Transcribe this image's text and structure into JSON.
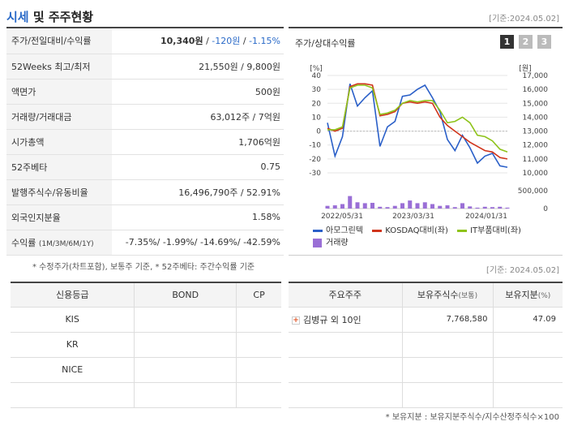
{
  "header": {
    "title_highlight": "시세",
    "title_rest": " 및 주주현황",
    "base_date": "[기준:2024.05.02]"
  },
  "info_rows": [
    {
      "label": "주가/전일대비/수익률",
      "value_main": "10,340원",
      "value_sep1": " / ",
      "value_change": "-120원",
      "value_sep2": " / ",
      "value_rate": "-1.15%"
    },
    {
      "label": "52Weeks 최고/최저",
      "value": "21,550원 / 9,800원"
    },
    {
      "label": "액면가",
      "value": "500원"
    },
    {
      "label": "거래량/거래대금",
      "value": "63,012주 / 7억원"
    },
    {
      "label": "시가총액",
      "value": "1,706억원"
    },
    {
      "label": "52주베타",
      "value": "0.75"
    },
    {
      "label": "발행주식수/유동비율",
      "value": "16,496,790주 / 52.91%"
    },
    {
      "label": "외국인지분율",
      "value": "1.58%"
    },
    {
      "label": "수익률",
      "label_small": "(1M/3M/6M/1Y)",
      "value": "-7.35%/ -1.99%/ -14.69%/ -42.59%"
    }
  ],
  "note_left": "* 수정주가(차트포함), 보통주 기준, * 52주베타: 주간수익률 기준",
  "base_date_2": "[기준: 2024.05.02]",
  "chart_panel": {
    "title": "주가/상대수익률",
    "tabs": [
      "1",
      "2",
      "3"
    ],
    "left_unit": "[%]",
    "right_unit": "[원]"
  },
  "chart_data": {
    "type": "line",
    "x_ticks": [
      "2022/05/31",
      "2023/03/31",
      "2024/01/31"
    ],
    "y_left_ticks": [
      40,
      30,
      20,
      10,
      0,
      -10,
      -20,
      -30
    ],
    "y_right_ticks": [
      "17,000",
      "16,000",
      "15,000",
      "14,000",
      "13,000",
      "12,000",
      "11,000",
      "10,000"
    ],
    "volume_ticks": [
      "500,000",
      "0"
    ],
    "series": [
      {
        "name": "아모그린텍",
        "color": "#2a5fc8",
        "values": [
          6,
          -18,
          -4,
          34,
          18,
          24,
          29,
          -11,
          3,
          7,
          25,
          26,
          30,
          33,
          24,
          14,
          -6,
          -14,
          -3,
          -12,
          -23,
          -18,
          -16,
          -25,
          -26
        ]
      },
      {
        "name": "KOSDAQ대비(좌)",
        "color": "#d0341b",
        "values": [
          2,
          0,
          2,
          32,
          34,
          34,
          33,
          11,
          12,
          14,
          20,
          21,
          20,
          21,
          20,
          10,
          4,
          0,
          -4,
          -8,
          -11,
          -14,
          -15,
          -19,
          -20
        ]
      },
      {
        "name": "IT부품대비(좌)",
        "color": "#8ec31a",
        "values": [
          1,
          1,
          3,
          31,
          33,
          33,
          31,
          12,
          13,
          15,
          20,
          22,
          21,
          22,
          22,
          15,
          6,
          7,
          10,
          6,
          -3,
          -4,
          -7,
          -13,
          -15
        ]
      }
    ],
    "volume": {
      "name": "거래량",
      "color": "#9a6fd6",
      "values": [
        0.15,
        0.18,
        0.25,
        0.7,
        0.35,
        0.3,
        0.32,
        0.1,
        0.08,
        0.15,
        0.3,
        0.45,
        0.3,
        0.35,
        0.25,
        0.15,
        0.18,
        0.08,
        0.3,
        0.12,
        0.05,
        0.1,
        0.08,
        0.1,
        0.05
      ]
    }
  },
  "credit_table": {
    "headers": [
      "신용등급",
      "BOND",
      "CP"
    ],
    "rows": [
      [
        "KIS",
        "",
        ""
      ],
      [
        "KR",
        "",
        ""
      ],
      [
        "NICE",
        "",
        ""
      ],
      [
        "",
        "",
        ""
      ]
    ]
  },
  "holders_table": {
    "headers": [
      "주요주주",
      "보유주식수",
      "(보통)",
      "보유지분",
      "(%)"
    ],
    "rows": [
      {
        "name": "김병규 외 10인",
        "shares": "7,768,580",
        "pct": "47.09"
      },
      {
        "name": "",
        "shares": "",
        "pct": ""
      },
      {
        "name": "",
        "shares": "",
        "pct": ""
      },
      {
        "name": "",
        "shares": "",
        "pct": ""
      }
    ]
  },
  "note_right": "* 보유지분 : 보유지분주식수/지수산정주식수×100"
}
